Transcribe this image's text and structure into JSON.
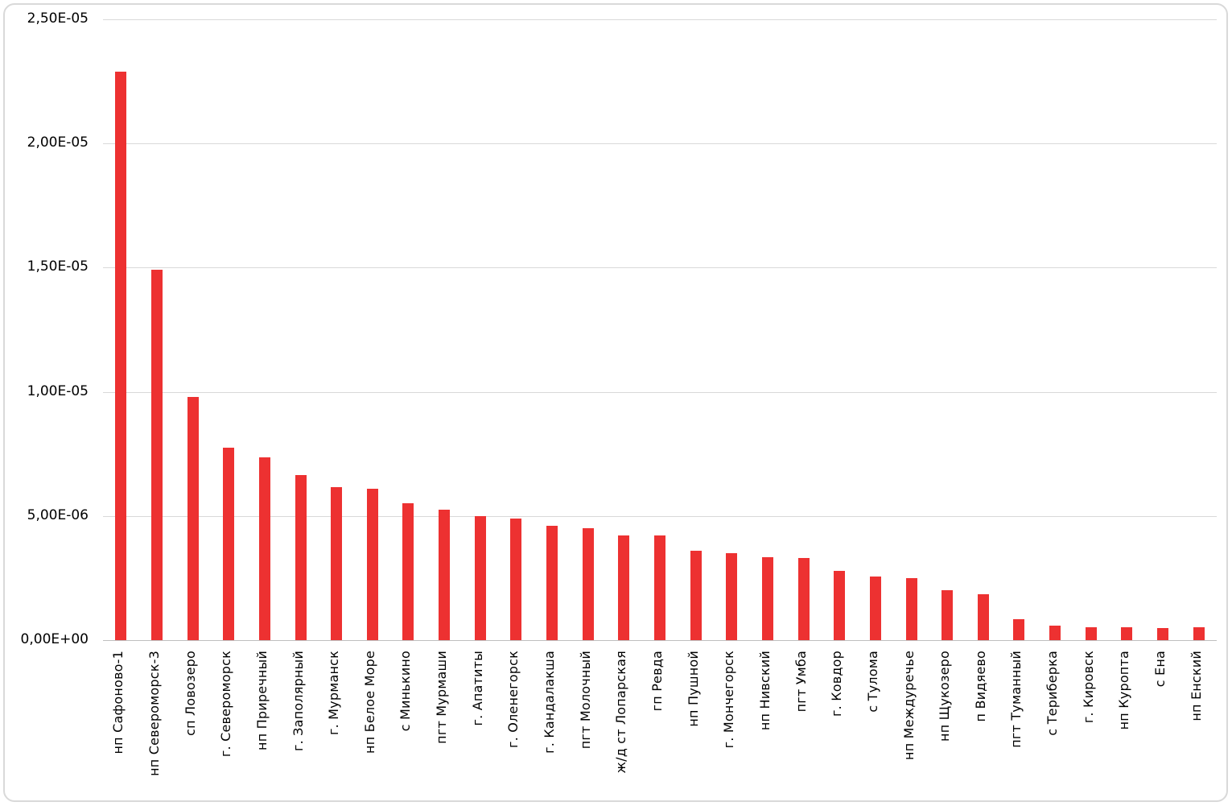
{
  "chart_data": {
    "type": "bar",
    "title": "",
    "xlabel": "",
    "ylabel": "",
    "legend": null,
    "grid": true,
    "bar_color": "#ed3131",
    "gridline_color": "#d9d9d9",
    "axis_line_color": "#bfbfbf",
    "y_axis": {
      "tick_labels": [
        "0,00E+00",
        "5,00E-06",
        "1,00E-05",
        "1,50E-05",
        "2,00E-05",
        "2,50E-05"
      ],
      "tick_values": [
        0,
        5e-06,
        1e-05,
        1.5e-05,
        2e-05,
        2.5e-05
      ],
      "range": [
        0,
        2.5e-05
      ],
      "number_format": "scientific-comma-decimal"
    },
    "categories": [
      "нп Сафоново-1",
      "нп Североморск-3",
      "сп Ловозеро",
      "г. Североморск",
      "нп Приречный",
      "г. Заполярный",
      "г. Мурманск",
      "нп Белое Море",
      "с Минькино",
      "пгт Мурмаши",
      "г. Апатиты",
      "г. Оленегорск",
      "г. Кандалакша",
      "пгт Молочный",
      "ж/д ст Лопарская",
      "гп Ревда",
      "нп Пушной",
      "г. Мончегорск",
      "нп Нивский",
      "пгт Умба",
      "г. Ковдор",
      "с Тулома",
      "нп Междуречье",
      "нп Щукозеро",
      "п Видяево",
      "пгт Туманный",
      "с Териберка",
      "г. Кировск",
      "нп Куропта",
      "с Ена",
      "нп Енский"
    ],
    "values": [
      2.29e-05,
      1.49e-05,
      9.8e-06,
      7.75e-06,
      7.35e-06,
      6.65e-06,
      6.15e-06,
      6.1e-06,
      5.5e-06,
      5.25e-06,
      5e-06,
      4.9e-06,
      4.6e-06,
      4.5e-06,
      4.2e-06,
      4.2e-06,
      3.6e-06,
      3.5e-06,
      3.35e-06,
      3.3e-06,
      2.8e-06,
      2.55e-06,
      2.5e-06,
      2e-06,
      1.85e-06,
      8.5e-07,
      5.8e-07,
      5.2e-07,
      5.2e-07,
      5e-07,
      5.3e-07
    ]
  }
}
